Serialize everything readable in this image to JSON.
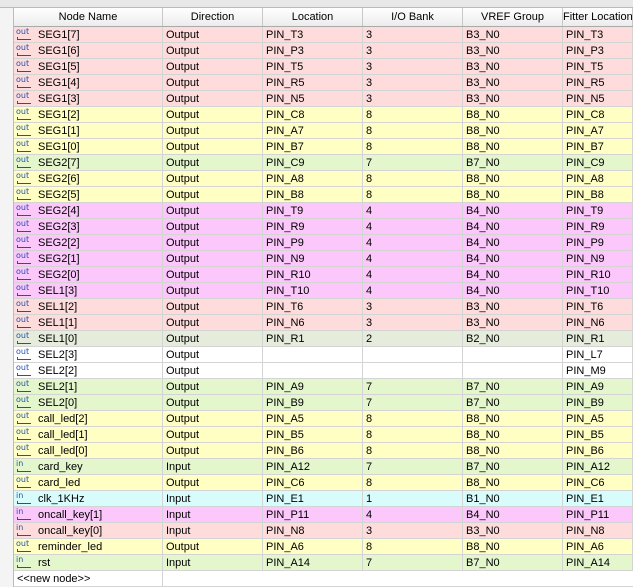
{
  "table": {
    "columns": [
      "Node Name",
      "Direction",
      "Location",
      "I/O Bank",
      "VREF Group",
      "Fitter Location"
    ],
    "rows": [
      {
        "icon": "out",
        "color": "#ffdcdc",
        "cells": [
          "SEG1[7]",
          "Output",
          "PIN_T3",
          "3",
          "B3_N0",
          "PIN_T3"
        ]
      },
      {
        "icon": "out",
        "color": "#ffdcdc",
        "cells": [
          "SEG1[6]",
          "Output",
          "PIN_P3",
          "3",
          "B3_N0",
          "PIN_P3"
        ]
      },
      {
        "icon": "out",
        "color": "#ffdcdc",
        "cells": [
          "SEG1[5]",
          "Output",
          "PIN_T5",
          "3",
          "B3_N0",
          "PIN_T5"
        ]
      },
      {
        "icon": "out",
        "color": "#ffdcdc",
        "cells": [
          "SEG1[4]",
          "Output",
          "PIN_R5",
          "3",
          "B3_N0",
          "PIN_R5"
        ]
      },
      {
        "icon": "out",
        "color": "#ffdcdc",
        "cells": [
          "SEG1[3]",
          "Output",
          "PIN_N5",
          "3",
          "B3_N0",
          "PIN_N5"
        ]
      },
      {
        "icon": "out",
        "color": "#ffffc4",
        "cells": [
          "SEG1[2]",
          "Output",
          "PIN_C8",
          "8",
          "B8_N0",
          "PIN_C8"
        ]
      },
      {
        "icon": "out",
        "color": "#ffffc4",
        "cells": [
          "SEG1[1]",
          "Output",
          "PIN_A7",
          "8",
          "B8_N0",
          "PIN_A7"
        ]
      },
      {
        "icon": "out",
        "color": "#ffffc4",
        "cells": [
          "SEG1[0]",
          "Output",
          "PIN_B7",
          "8",
          "B8_N0",
          "PIN_B7"
        ]
      },
      {
        "icon": "out",
        "color": "#e4f7cc",
        "cells": [
          "SEG2[7]",
          "Output",
          "PIN_C9",
          "7",
          "B7_N0",
          "PIN_C9"
        ]
      },
      {
        "icon": "out",
        "color": "#ffffc4",
        "cells": [
          "SEG2[6]",
          "Output",
          "PIN_A8",
          "8",
          "B8_N0",
          "PIN_A8"
        ]
      },
      {
        "icon": "out",
        "color": "#ffffc4",
        "cells": [
          "SEG2[5]",
          "Output",
          "PIN_B8",
          "8",
          "B8_N0",
          "PIN_B8"
        ]
      },
      {
        "icon": "out",
        "color": "#fcc8fc",
        "cells": [
          "SEG2[4]",
          "Output",
          "PIN_T9",
          "4",
          "B4_N0",
          "PIN_T9"
        ]
      },
      {
        "icon": "out",
        "color": "#fcc8fc",
        "cells": [
          "SEG2[3]",
          "Output",
          "PIN_R9",
          "4",
          "B4_N0",
          "PIN_R9"
        ]
      },
      {
        "icon": "out",
        "color": "#fcc8fc",
        "cells": [
          "SEG2[2]",
          "Output",
          "PIN_P9",
          "4",
          "B4_N0",
          "PIN_P9"
        ]
      },
      {
        "icon": "out",
        "color": "#fcc8fc",
        "cells": [
          "SEG2[1]",
          "Output",
          "PIN_N9",
          "4",
          "B4_N0",
          "PIN_N9"
        ]
      },
      {
        "icon": "out",
        "color": "#fcc8fc",
        "cells": [
          "SEG2[0]",
          "Output",
          "PIN_R10",
          "4",
          "B4_N0",
          "PIN_R10"
        ]
      },
      {
        "icon": "out",
        "color": "#fcc8fc",
        "cells": [
          "SEL1[3]",
          "Output",
          "PIN_T10",
          "4",
          "B4_N0",
          "PIN_T10"
        ]
      },
      {
        "icon": "out",
        "color": "#ffdcdc",
        "cells": [
          "SEL1[2]",
          "Output",
          "PIN_T6",
          "3",
          "B3_N0",
          "PIN_T6"
        ]
      },
      {
        "icon": "out",
        "color": "#ffdcdc",
        "cells": [
          "SEL1[1]",
          "Output",
          "PIN_N6",
          "3",
          "B3_N0",
          "PIN_N6"
        ]
      },
      {
        "icon": "out",
        "color": "#e6ecdc",
        "cells": [
          "SEL1[0]",
          "Output",
          "PIN_R1",
          "2",
          "B2_N0",
          "PIN_R1"
        ]
      },
      {
        "icon": "out",
        "color": "#ffffff",
        "cells": [
          "SEL2[3]",
          "Output",
          null,
          null,
          null,
          "PIN_L7"
        ]
      },
      {
        "icon": "out",
        "color": "#ffffff",
        "cells": [
          "SEL2[2]",
          "Output",
          null,
          null,
          null,
          "PIN_M9"
        ]
      },
      {
        "icon": "out",
        "color": "#e4f7cc",
        "cells": [
          "SEL2[1]",
          "Output",
          "PIN_A9",
          "7",
          "B7_N0",
          "PIN_A9"
        ]
      },
      {
        "icon": "out",
        "color": "#e4f7cc",
        "cells": [
          "SEL2[0]",
          "Output",
          "PIN_B9",
          "7",
          "B7_N0",
          "PIN_B9"
        ]
      },
      {
        "icon": "out",
        "color": "#ffffc4",
        "cells": [
          "call_led[2]",
          "Output",
          "PIN_A5",
          "8",
          "B8_N0",
          "PIN_A5"
        ]
      },
      {
        "icon": "out",
        "color": "#ffffc4",
        "cells": [
          "call_led[1]",
          "Output",
          "PIN_B5",
          "8",
          "B8_N0",
          "PIN_B5"
        ]
      },
      {
        "icon": "out",
        "color": "#ffffc4",
        "cells": [
          "call_led[0]",
          "Output",
          "PIN_B6",
          "8",
          "B8_N0",
          "PIN_B6"
        ]
      },
      {
        "icon": "in",
        "color": "#e4f7cc",
        "cells": [
          "card_key",
          "Input",
          "PIN_A12",
          "7",
          "B7_N0",
          "PIN_A12"
        ]
      },
      {
        "icon": "out",
        "color": "#ffffc4",
        "cells": [
          "card_led",
          "Output",
          "PIN_C6",
          "8",
          "B8_N0",
          "PIN_C6"
        ]
      },
      {
        "icon": "in",
        "color": "#d8fcfc",
        "cells": [
          "clk_1KHz",
          "Input",
          "PIN_E1",
          "1",
          "B1_N0",
          "PIN_E1"
        ]
      },
      {
        "icon": "in",
        "color": "#fcc8fc",
        "cells": [
          "oncall_key[1]",
          "Input",
          "PIN_P11",
          "4",
          "B4_N0",
          "PIN_P11"
        ]
      },
      {
        "icon": "in",
        "color": "#ffdcdc",
        "cells": [
          "oncall_key[0]",
          "Input",
          "PIN_N8",
          "3",
          "B3_N0",
          "PIN_N8"
        ]
      },
      {
        "icon": "out",
        "color": "#ffffc4",
        "cells": [
          "reminder_led",
          "Output",
          "PIN_A6",
          "8",
          "B8_N0",
          "PIN_A6"
        ]
      },
      {
        "icon": "in",
        "color": "#e4f7cc",
        "cells": [
          "rst",
          "Input",
          "PIN_A14",
          "7",
          "B7_N0",
          "PIN_A14"
        ]
      }
    ],
    "new_node": "<<new node>>"
  }
}
